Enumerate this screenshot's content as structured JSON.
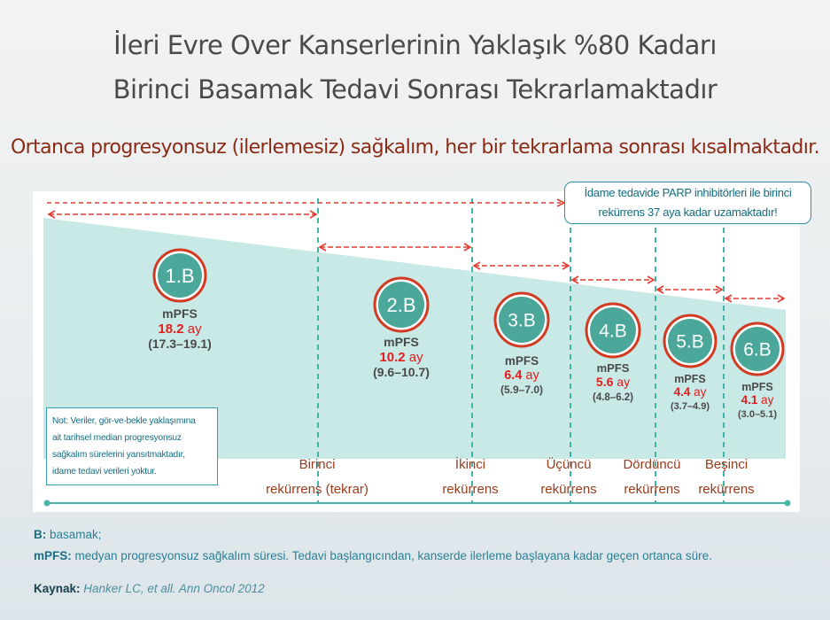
{
  "title_line1": "İleri Evre Over Kanserlerinin Yaklaşık %80 Kadarı",
  "title_line2": "Birinci Basamak Tedavi Sonrası Tekrarlamaktadır",
  "subtitle": "Ortanca progresyonsuz (ilerlemesiz) sağkalım, her bir tekrarlama sonrası kısalmaktadır.",
  "callout": {
    "line1": "İdame tedavide PARP inhibitörleri ile birinci",
    "line2": "rekürrens 37 aya kadar uzamaktadır!"
  },
  "note": {
    "lines": [
      "Not: Veriler, gör-ve-bekle yaklaşımına",
      "ait tarihsel median progresyonsuz",
      "sağkalım sürelerini yansıtmaktadır,",
      "idame tedavi verileri yoktur."
    ]
  },
  "legend": {
    "b_label": "B:",
    "b_text": "basamak;",
    "mpfs_label": "mPFS:",
    "mpfs_text": "medyan progresyonsuz sağkalım süresi. Tedavi başlangıcından, kanserde ilerleme başlayana kadar geçen ortanca süre."
  },
  "source": {
    "label": "Kaynak:",
    "text": "Hanker LC, et all. Ann Oncol 2012"
  },
  "colors": {
    "band": "#c9e9e6",
    "circle_fill": "#4aa79a",
    "circle_ring": "#d23a22",
    "arrow": "#e03c31",
    "dashed_divider": "#3fb4a7",
    "value_red": "#e11d1d",
    "recurrence_text": "#9a3b1c"
  },
  "chart_data": {
    "type": "bar",
    "metric_label": "mPFS",
    "unit": "ay",
    "categories": [
      "1.B",
      "2.B",
      "3.B",
      "4.B",
      "5.B",
      "6.B"
    ],
    "values": [
      18.2,
      10.2,
      6.4,
      5.6,
      4.4,
      4.1
    ],
    "ci_labels": [
      "(17.3–19.1)",
      "(9.6–10.7)",
      "(5.9–7.0)",
      "(4.8–6.2)",
      "(3.7–4.9)",
      "(3.0–5.1)"
    ],
    "recurrences": [
      {
        "line1": "Birinci",
        "line2": "rekürrens (tekrar)"
      },
      {
        "line1": "İkinci",
        "line2": "rekürrens"
      },
      {
        "line1": "Üçüncü",
        "line2": "rekürrens"
      },
      {
        "line1": "Dördüncü",
        "line2": "rekürrens"
      },
      {
        "line1": "Beşinci",
        "line2": "rekürrens"
      }
    ],
    "parp_extension_months": 37
  }
}
